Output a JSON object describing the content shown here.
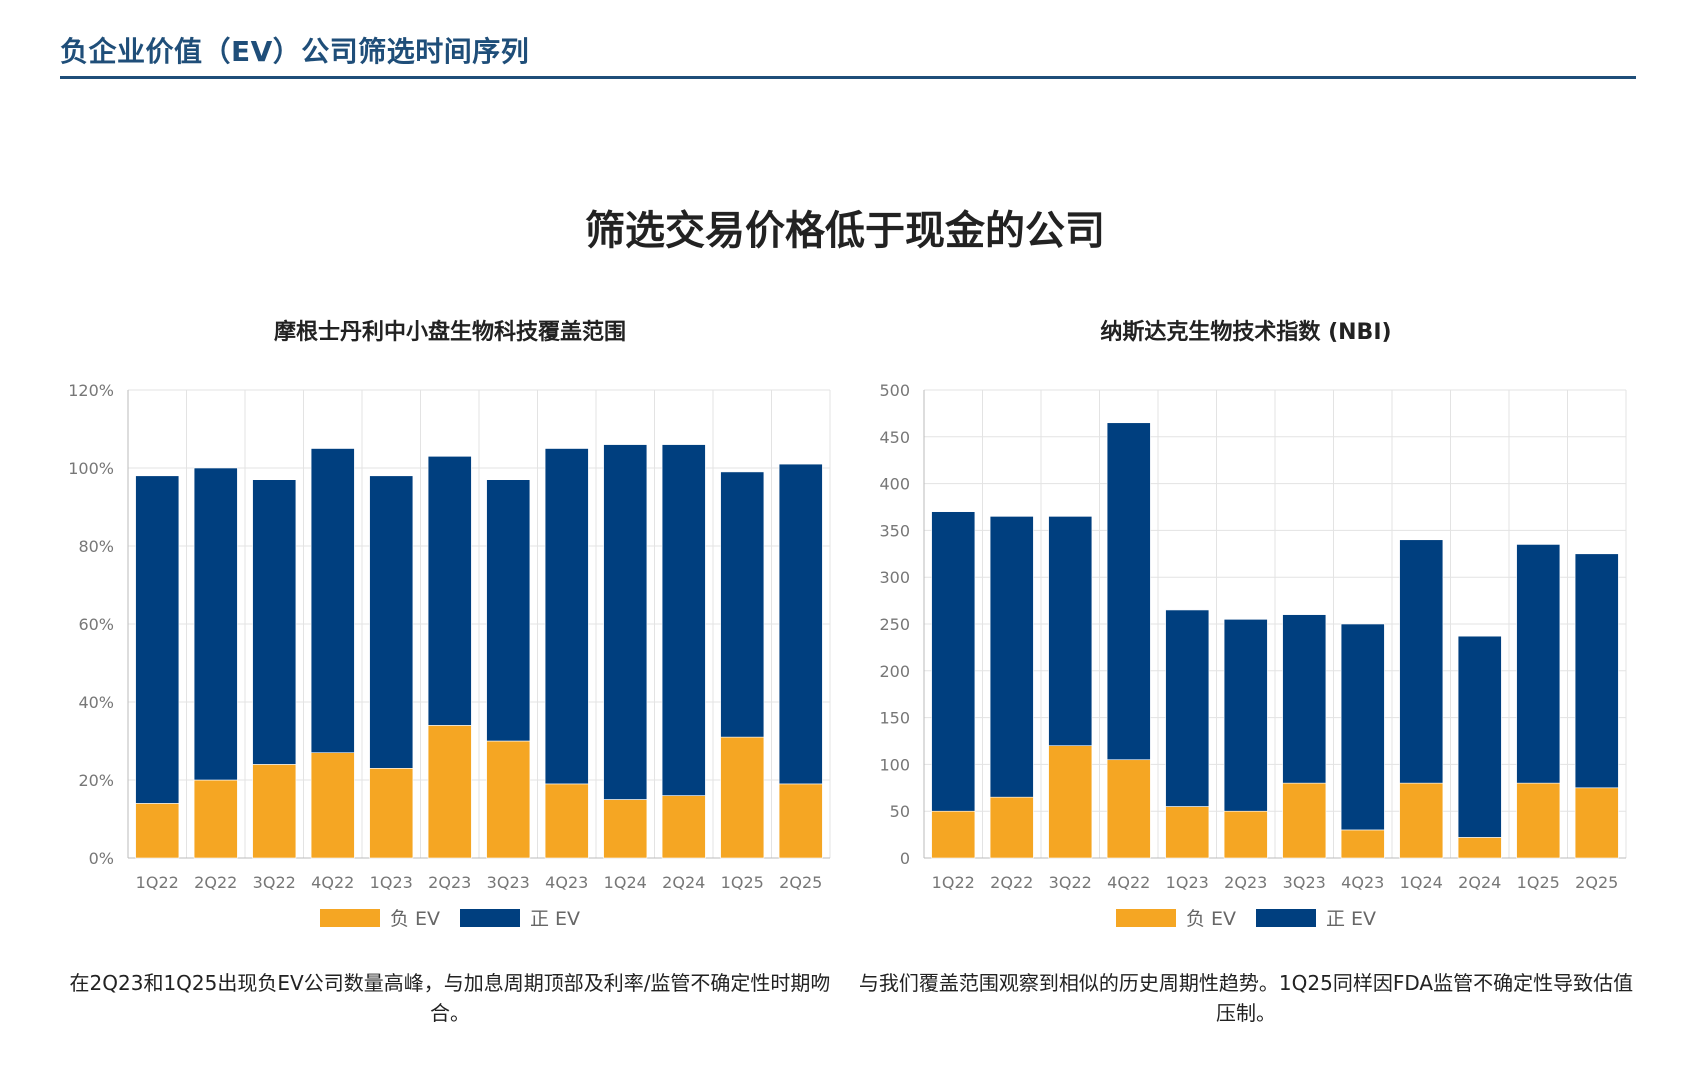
{
  "page": {
    "title": "负企业价值（EV）公司筛选时间序列",
    "heading": "筛选交易价格低于现金的公司"
  },
  "colors": {
    "negative": "#F5A623",
    "positive": "#003F7F",
    "title": "#1F4E79"
  },
  "panels": [
    {
      "title": "摩根士丹利中小盘生物科技覆盖范围",
      "caption": "在2Q23和1Q25出现负EV公司数量高峰，与加息周期顶部及利率/监管不确定性时期吻合。",
      "legend": {
        "negative": "负 EV",
        "positive": "正 EV"
      }
    },
    {
      "title": "纳斯达克生物技术指数 (NBI)",
      "caption": "与我们覆盖范围观察到相似的历史周期性趋势。1Q25同样因FDA监管不确定性导致估值压制。",
      "legend": {
        "negative": "负 EV",
        "positive": "正 EV"
      }
    }
  ],
  "chart_data": [
    {
      "type": "bar",
      "stacked": true,
      "title": "摩根士丹利中小盘生物科技覆盖范围",
      "categories": [
        "1Q22",
        "2Q22",
        "3Q22",
        "4Q22",
        "1Q23",
        "2Q23",
        "3Q23",
        "4Q23",
        "1Q24",
        "2Q24",
        "1Q25",
        "2Q25"
      ],
      "series": [
        {
          "name": "负 EV",
          "values": [
            14,
            20,
            24,
            27,
            23,
            34,
            30,
            19,
            15,
            16,
            31,
            19
          ]
        },
        {
          "name": "正 EV",
          "values": [
            84,
            80,
            73,
            78,
            75,
            69,
            67,
            86,
            91,
            90,
            68,
            82
          ]
        }
      ],
      "ylim": [
        0,
        120
      ],
      "yticks": [
        0,
        20,
        40,
        60,
        80,
        100,
        120
      ],
      "ytick_labels": [
        "0%",
        "20%",
        "40%",
        "60%",
        "80%",
        "100%",
        "120%"
      ],
      "grid": true,
      "legend": "bottom"
    },
    {
      "type": "bar",
      "stacked": true,
      "title": "纳斯达克生物技术指数 (NBI)",
      "categories": [
        "1Q22",
        "2Q22",
        "3Q22",
        "4Q22",
        "1Q23",
        "2Q23",
        "3Q23",
        "4Q23",
        "1Q24",
        "2Q24",
        "1Q25",
        "2Q25"
      ],
      "series": [
        {
          "name": "负 EV",
          "values": [
            50,
            65,
            120,
            105,
            55,
            50,
            80,
            30,
            80,
            22,
            80,
            75
          ]
        },
        {
          "name": "正 EV",
          "values": [
            320,
            300,
            245,
            360,
            210,
            205,
            180,
            220,
            260,
            215,
            255,
            250
          ]
        }
      ],
      "ylim": [
        0,
        500
      ],
      "yticks": [
        0,
        50,
        100,
        150,
        200,
        250,
        300,
        350,
        400,
        450,
        500
      ],
      "ytick_labels": [
        "0",
        "50",
        "100",
        "150",
        "200",
        "250",
        "300",
        "350",
        "400",
        "450",
        "500"
      ],
      "grid": true,
      "legend": "bottom"
    }
  ]
}
